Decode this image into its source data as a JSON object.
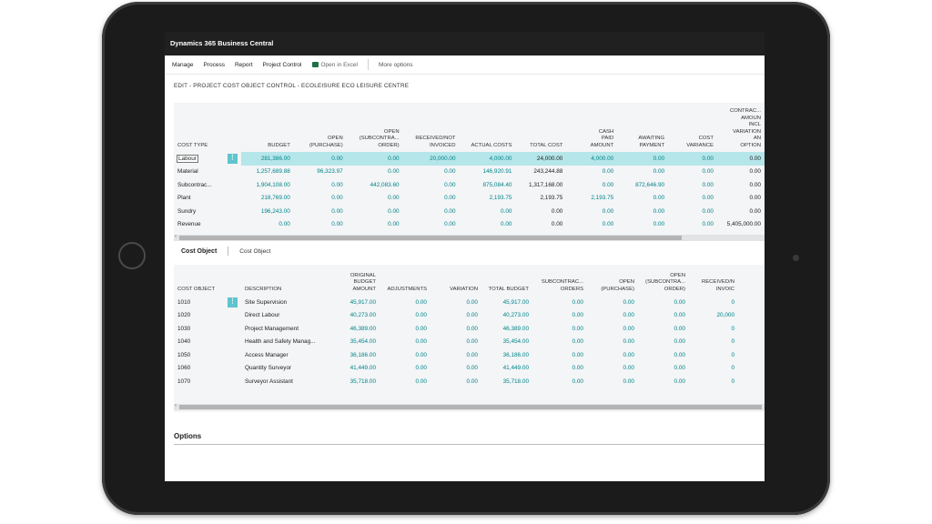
{
  "app": {
    "title": "Dynamics 365 Business Central"
  },
  "actions": {
    "manage": "Manage",
    "process": "Process",
    "report": "Report",
    "project_control": "Project Control",
    "open_in_excel": "Open in Excel",
    "more_options": "More options"
  },
  "page_title": "EDIT - PROJECT COST OBJECT CONTROL - ECOLEISURE ECO LEISURE CENTRE",
  "cost_types": {
    "headers": [
      "COST TYPE",
      "BUDGET",
      "OPEN (PURCHASE)",
      "OPEN (SUBCONTRA... ORDER)",
      "RECEIVED/NOT INVOICED",
      "ACTUAL COSTS",
      "TOTAL COST",
      "CASH PAID AMOUNT",
      "AWAITING PAYMENT",
      "COST VARIANCE",
      "CONTRAC... AMOUN INCL VARIATION AN OPTION"
    ],
    "rows": [
      [
        "Labour",
        "281,386.00",
        "0.00",
        "0.00",
        "20,000.00",
        "4,000.00",
        "24,000.00",
        "4,000.00",
        "0.00",
        "0.00",
        "0.00"
      ],
      [
        "Material",
        "1,257,689.88",
        "96,323.97",
        "0.00",
        "0.00",
        "146,920.91",
        "243,244.88",
        "0.00",
        "0.00",
        "0.00",
        "0.00"
      ],
      [
        "Subcontrac...",
        "1,904,108.00",
        "0.00",
        "442,083.60",
        "0.00",
        "875,084.40",
        "1,317,168.00",
        "0.00",
        "872,646.90",
        "0.00",
        "0.00"
      ],
      [
        "Plant",
        "218,769.00",
        "0.00",
        "0.00",
        "0.00",
        "2,193.75",
        "2,193.75",
        "2,193.75",
        "0.00",
        "0.00",
        "0.00"
      ],
      [
        "Sundry",
        "196,243.00",
        "0.00",
        "0.00",
        "0.00",
        "0.00",
        "0.00",
        "0.00",
        "0.00",
        "0.00",
        "0.00"
      ],
      [
        "Revenue",
        "0.00",
        "0.00",
        "0.00",
        "0.00",
        "0.00",
        "0.00",
        "0.00",
        "0.00",
        "0.00",
        "5,405,000.00"
      ]
    ]
  },
  "cost_object_part": {
    "title": "Cost Object",
    "tab": "Cost Object",
    "headers": [
      "COST OBJECT",
      "DESCRIPTION",
      "ORIGINAL BUDGET AMOUNT",
      "ADJUSTMENTS",
      "VARIATION",
      "TOTAL BUDGET",
      "SUBCONTRAC... ORDERS",
      "OPEN (PURCHASE)",
      "OPEN (SUBCONTRA... ORDER)",
      "RECEIVED/N INVOIC"
    ],
    "rows": [
      [
        "1010",
        "Site Supervision",
        "45,917.00",
        "0.00",
        "0.00",
        "45,917.00",
        "0.00",
        "0.00",
        "0.00",
        "0"
      ],
      [
        "1020",
        "Direct Labour",
        "40,273.00",
        "0.00",
        "0.00",
        "40,273.00",
        "0.00",
        "0.00",
        "0.00",
        "20,000"
      ],
      [
        "1030",
        "Project Management",
        "46,389.00",
        "0.00",
        "0.00",
        "46,389.00",
        "0.00",
        "0.00",
        "0.00",
        "0"
      ],
      [
        "1040",
        "Health and Safety Manag...",
        "35,454.00",
        "0.00",
        "0.00",
        "35,454.00",
        "0.00",
        "0.00",
        "0.00",
        "0"
      ],
      [
        "1050",
        "Access Manager",
        "36,186.00",
        "0.00",
        "0.00",
        "36,186.00",
        "0.00",
        "0.00",
        "0.00",
        "0"
      ],
      [
        "1060",
        "Quantity Surveyor",
        "41,449.00",
        "0.00",
        "0.00",
        "41,449.00",
        "0.00",
        "0.00",
        "0.00",
        "0"
      ],
      [
        "1070",
        "Surveyor Assistant",
        "35,718.00",
        "0.00",
        "0.00",
        "35,718.00",
        "0.00",
        "0.00",
        "0.00",
        "0"
      ]
    ]
  },
  "options": {
    "title": "Options"
  },
  "colors": {
    "accent": "#008489",
    "selected_row": "#b5e6ea",
    "titlebar": "#202020"
  },
  "icons": {
    "excel": "excel-icon",
    "row_menu": "ellipsis-vertical-icon"
  }
}
